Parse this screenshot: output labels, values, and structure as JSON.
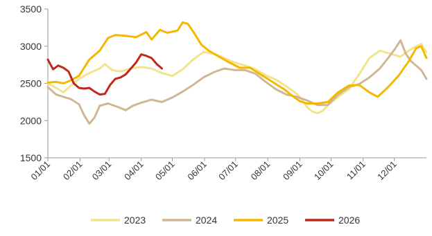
{
  "chart_data": {
    "type": "line",
    "ylim": [
      1500,
      3500
    ],
    "yticks": [
      1500,
      2000,
      2500,
      3000,
      3500
    ],
    "xlim": [
      0,
      365
    ],
    "xticks": [
      {
        "label": "01/01",
        "day": 0
      },
      {
        "label": "02/01",
        "day": 31
      },
      {
        "label": "03/01",
        "day": 59
      },
      {
        "label": "04/01",
        "day": 90
      },
      {
        "label": "05/01",
        "day": 120
      },
      {
        "label": "06/01",
        "day": 151
      },
      {
        "label": "07/01",
        "day": 181
      },
      {
        "label": "08/01",
        "day": 212
      },
      {
        "label": "09/01",
        "day": 243
      },
      {
        "label": "10/01",
        "day": 273
      },
      {
        "label": "11/01",
        "day": 304
      },
      {
        "label": "12/01",
        "day": 334
      }
    ],
    "grid": false,
    "legend_position": "bottom",
    "series": [
      {
        "name": "2023",
        "color": "#f2e38d",
        "points": [
          [
            0,
            2500
          ],
          [
            8,
            2440
          ],
          [
            15,
            2380
          ],
          [
            22,
            2470
          ],
          [
            30,
            2560
          ],
          [
            40,
            2640
          ],
          [
            50,
            2700
          ],
          [
            55,
            2760
          ],
          [
            62,
            2680
          ],
          [
            70,
            2660
          ],
          [
            80,
            2700
          ],
          [
            90,
            2720
          ],
          [
            100,
            2700
          ],
          [
            110,
            2640
          ],
          [
            120,
            2600
          ],
          [
            130,
            2690
          ],
          [
            140,
            2820
          ],
          [
            150,
            2920
          ],
          [
            160,
            2900
          ],
          [
            170,
            2840
          ],
          [
            180,
            2780
          ],
          [
            190,
            2740
          ],
          [
            200,
            2690
          ],
          [
            210,
            2610
          ],
          [
            220,
            2550
          ],
          [
            230,
            2460
          ],
          [
            240,
            2360
          ],
          [
            245,
            2280
          ],
          [
            250,
            2180
          ],
          [
            255,
            2120
          ],
          [
            260,
            2100
          ],
          [
            265,
            2130
          ],
          [
            270,
            2210
          ],
          [
            280,
            2320
          ],
          [
            290,
            2420
          ],
          [
            300,
            2620
          ],
          [
            310,
            2840
          ],
          [
            320,
            2940
          ],
          [
            330,
            2900
          ],
          [
            340,
            2860
          ],
          [
            350,
            2960
          ],
          [
            360,
            3030
          ],
          [
            365,
            2920
          ]
        ]
      },
      {
        "name": "2024",
        "color": "#cfb795",
        "points": [
          [
            0,
            2450
          ],
          [
            8,
            2350
          ],
          [
            15,
            2320
          ],
          [
            22,
            2290
          ],
          [
            30,
            2220
          ],
          [
            35,
            2070
          ],
          [
            40,
            1960
          ],
          [
            45,
            2040
          ],
          [
            50,
            2200
          ],
          [
            58,
            2230
          ],
          [
            68,
            2180
          ],
          [
            75,
            2140
          ],
          [
            82,
            2200
          ],
          [
            90,
            2240
          ],
          [
            100,
            2280
          ],
          [
            110,
            2250
          ],
          [
            120,
            2310
          ],
          [
            130,
            2390
          ],
          [
            140,
            2480
          ],
          [
            150,
            2580
          ],
          [
            160,
            2650
          ],
          [
            170,
            2700
          ],
          [
            180,
            2680
          ],
          [
            190,
            2680
          ],
          [
            200,
            2630
          ],
          [
            210,
            2520
          ],
          [
            220,
            2420
          ],
          [
            230,
            2350
          ],
          [
            240,
            2320
          ],
          [
            250,
            2270
          ],
          [
            260,
            2210
          ],
          [
            270,
            2210
          ],
          [
            280,
            2350
          ],
          [
            290,
            2450
          ],
          [
            300,
            2490
          ],
          [
            310,
            2580
          ],
          [
            320,
            2700
          ],
          [
            328,
            2840
          ],
          [
            335,
            2970
          ],
          [
            340,
            3080
          ],
          [
            345,
            2900
          ],
          [
            350,
            2800
          ],
          [
            360,
            2680
          ],
          [
            365,
            2560
          ]
        ]
      },
      {
        "name": "2025",
        "color": "#f5b800",
        "points": [
          [
            0,
            2510
          ],
          [
            8,
            2520
          ],
          [
            15,
            2500
          ],
          [
            22,
            2540
          ],
          [
            30,
            2600
          ],
          [
            40,
            2820
          ],
          [
            50,
            2940
          ],
          [
            58,
            3110
          ],
          [
            65,
            3150
          ],
          [
            75,
            3140
          ],
          [
            85,
            3120
          ],
          [
            95,
            3190
          ],
          [
            100,
            3090
          ],
          [
            108,
            3220
          ],
          [
            115,
            3180
          ],
          [
            125,
            3210
          ],
          [
            130,
            3320
          ],
          [
            135,
            3300
          ],
          [
            140,
            3200
          ],
          [
            148,
            3020
          ],
          [
            155,
            2940
          ],
          [
            165,
            2860
          ],
          [
            175,
            2780
          ],
          [
            185,
            2710
          ],
          [
            195,
            2710
          ],
          [
            205,
            2620
          ],
          [
            212,
            2560
          ],
          [
            220,
            2490
          ],
          [
            228,
            2420
          ],
          [
            235,
            2340
          ],
          [
            243,
            2260
          ],
          [
            250,
            2230
          ],
          [
            260,
            2230
          ],
          [
            270,
            2250
          ],
          [
            280,
            2380
          ],
          [
            290,
            2470
          ],
          [
            300,
            2480
          ],
          [
            310,
            2380
          ],
          [
            318,
            2320
          ],
          [
            328,
            2450
          ],
          [
            338,
            2600
          ],
          [
            348,
            2800
          ],
          [
            355,
            2970
          ],
          [
            360,
            3000
          ],
          [
            365,
            2840
          ]
        ]
      },
      {
        "name": "2026",
        "color": "#c0281c",
        "points": [
          [
            0,
            2820
          ],
          [
            5,
            2690
          ],
          [
            10,
            2740
          ],
          [
            15,
            2710
          ],
          [
            20,
            2660
          ],
          [
            25,
            2500
          ],
          [
            30,
            2440
          ],
          [
            35,
            2430
          ],
          [
            40,
            2440
          ],
          [
            45,
            2390
          ],
          [
            50,
            2350
          ],
          [
            55,
            2360
          ],
          [
            60,
            2480
          ],
          [
            65,
            2560
          ],
          [
            70,
            2580
          ],
          [
            75,
            2620
          ],
          [
            80,
            2700
          ],
          [
            85,
            2780
          ],
          [
            90,
            2890
          ],
          [
            95,
            2870
          ],
          [
            100,
            2840
          ],
          [
            105,
            2760
          ],
          [
            110,
            2700
          ]
        ]
      }
    ]
  }
}
